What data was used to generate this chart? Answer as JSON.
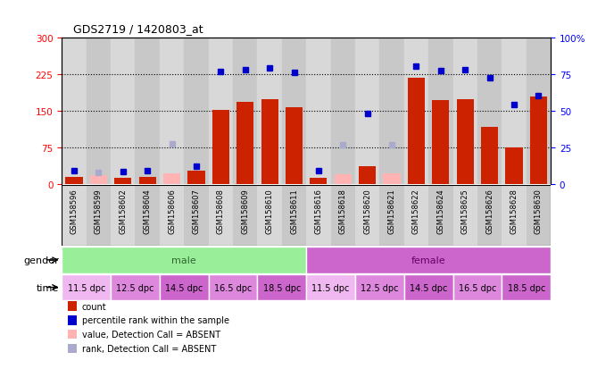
{
  "title": "GDS2719 / 1420803_at",
  "samples": [
    "GSM158596",
    "GSM158599",
    "GSM158602",
    "GSM158604",
    "GSM158606",
    "GSM158607",
    "GSM158608",
    "GSM158609",
    "GSM158610",
    "GSM158611",
    "GSM158616",
    "GSM158618",
    "GSM158620",
    "GSM158621",
    "GSM158622",
    "GSM158624",
    "GSM158625",
    "GSM158626",
    "GSM158628",
    "GSM158630"
  ],
  "count_present": [
    15,
    null,
    13,
    15,
    null,
    28,
    153,
    168,
    175,
    157,
    13,
    null,
    37,
    null,
    218,
    172,
    175,
    118,
    75,
    180
  ],
  "count_absent": [
    null,
    18,
    null,
    null,
    22,
    null,
    null,
    null,
    null,
    null,
    null,
    20,
    null,
    22,
    null,
    null,
    null,
    null,
    null,
    null
  ],
  "pct_present": [
    28,
    null,
    26,
    28,
    null,
    37,
    232,
    235,
    238,
    230,
    27,
    null,
    145,
    null,
    242,
    233,
    234,
    218,
    163,
    182
  ],
  "pct_absent": [
    null,
    24,
    null,
    null,
    82,
    null,
    null,
    null,
    null,
    null,
    null,
    80,
    null,
    80,
    null,
    null,
    null,
    null,
    null,
    null
  ],
  "gender_groups": [
    {
      "label": "male",
      "start": 0,
      "end": 9
    },
    {
      "label": "female",
      "start": 10,
      "end": 19
    }
  ],
  "time_groups": [
    {
      "label": "11.5 dpc",
      "start": 0,
      "end": 1
    },
    {
      "label": "12.5 dpc",
      "start": 2,
      "end": 3
    },
    {
      "label": "14.5 dpc",
      "start": 4,
      "end": 5
    },
    {
      "label": "16.5 dpc",
      "start": 6,
      "end": 7
    },
    {
      "label": "18.5 dpc",
      "start": 8,
      "end": 9
    },
    {
      "label": "11.5 dpc",
      "start": 10,
      "end": 11
    },
    {
      "label": "12.5 dpc",
      "start": 12,
      "end": 13
    },
    {
      "label": "14.5 dpc",
      "start": 14,
      "end": 15
    },
    {
      "label": "16.5 dpc",
      "start": 16,
      "end": 17
    },
    {
      "label": "18.5 dpc",
      "start": 18,
      "end": 19
    }
  ],
  "ylim_left": [
    0,
    300
  ],
  "ylim_right": [
    0,
    100
  ],
  "yticks_left": [
    0,
    75,
    150,
    225,
    300
  ],
  "ytick_labels_left": [
    "0",
    "75",
    "150",
    "225",
    "300"
  ],
  "yticks_right": [
    0,
    25,
    50,
    75,
    100
  ],
  "ytick_labels_right": [
    "0",
    "25",
    "50",
    "75",
    "100%"
  ],
  "hlines": [
    75,
    150,
    225
  ],
  "bar_color": "#cc2200",
  "bar_absent_color": "#ffb3b3",
  "dot_color": "#0000cc",
  "dot_absent_color": "#aaaacc",
  "col_colors": [
    "#d8d8d8",
    "#c8c8c8"
  ],
  "gender_color_male": "#99ee99",
  "gender_color_female": "#cc66cc",
  "gender_text_male": "#336633",
  "gender_text_female": "#660066",
  "time_colors": [
    "#f0b8f0",
    "#dd88dd",
    "#cc66cc",
    "#dd88dd",
    "#cc66cc"
  ],
  "legend_items": [
    {
      "color": "#cc2200",
      "label": "count"
    },
    {
      "color": "#0000cc",
      "label": "percentile rank within the sample"
    },
    {
      "color": "#ffb3b3",
      "label": "value, Detection Call = ABSENT"
    },
    {
      "color": "#aaaacc",
      "label": "rank, Detection Call = ABSENT"
    }
  ]
}
